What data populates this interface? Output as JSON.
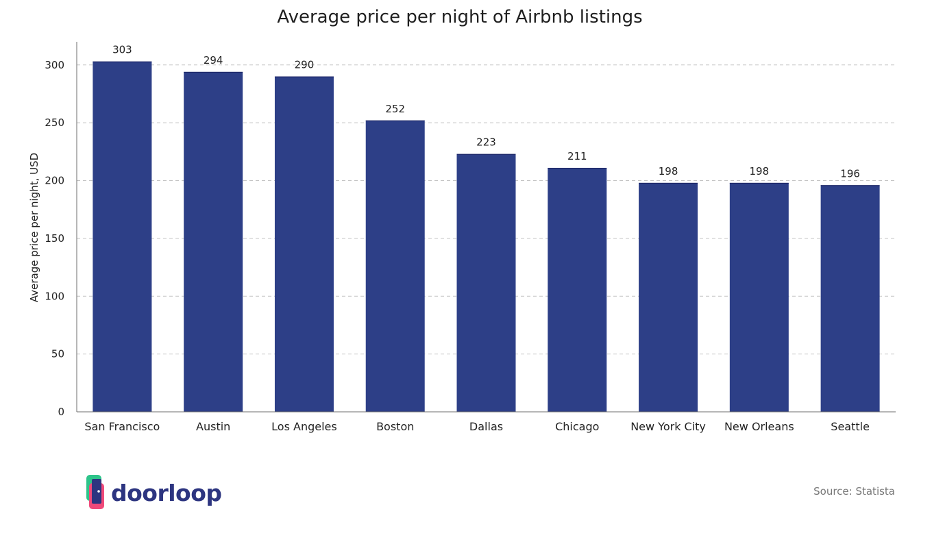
{
  "chart_data": {
    "type": "bar",
    "title": "Average price per night of Airbnb listings",
    "xlabel": "",
    "ylabel": "Average price per night, USD",
    "categories": [
      "San Francisco",
      "Austin",
      "Los Angeles",
      "Boston",
      "Dallas",
      "Chicago",
      "New York City",
      "New Orleans",
      "Seattle"
    ],
    "values": [
      303,
      294,
      290,
      252,
      223,
      211,
      198,
      198,
      196
    ],
    "ylim": [
      0,
      320
    ],
    "yticks": [
      0,
      50,
      100,
      150,
      200,
      250,
      300
    ],
    "grid": true,
    "bar_color": "#2d3f87",
    "data_labels": true
  },
  "brand": {
    "name": "doorloop",
    "logo_icon": "door-icon",
    "colors": [
      "#2ec48a",
      "#f04a7a",
      "#2d3580"
    ]
  },
  "source": {
    "text": "Source: Statista"
  }
}
